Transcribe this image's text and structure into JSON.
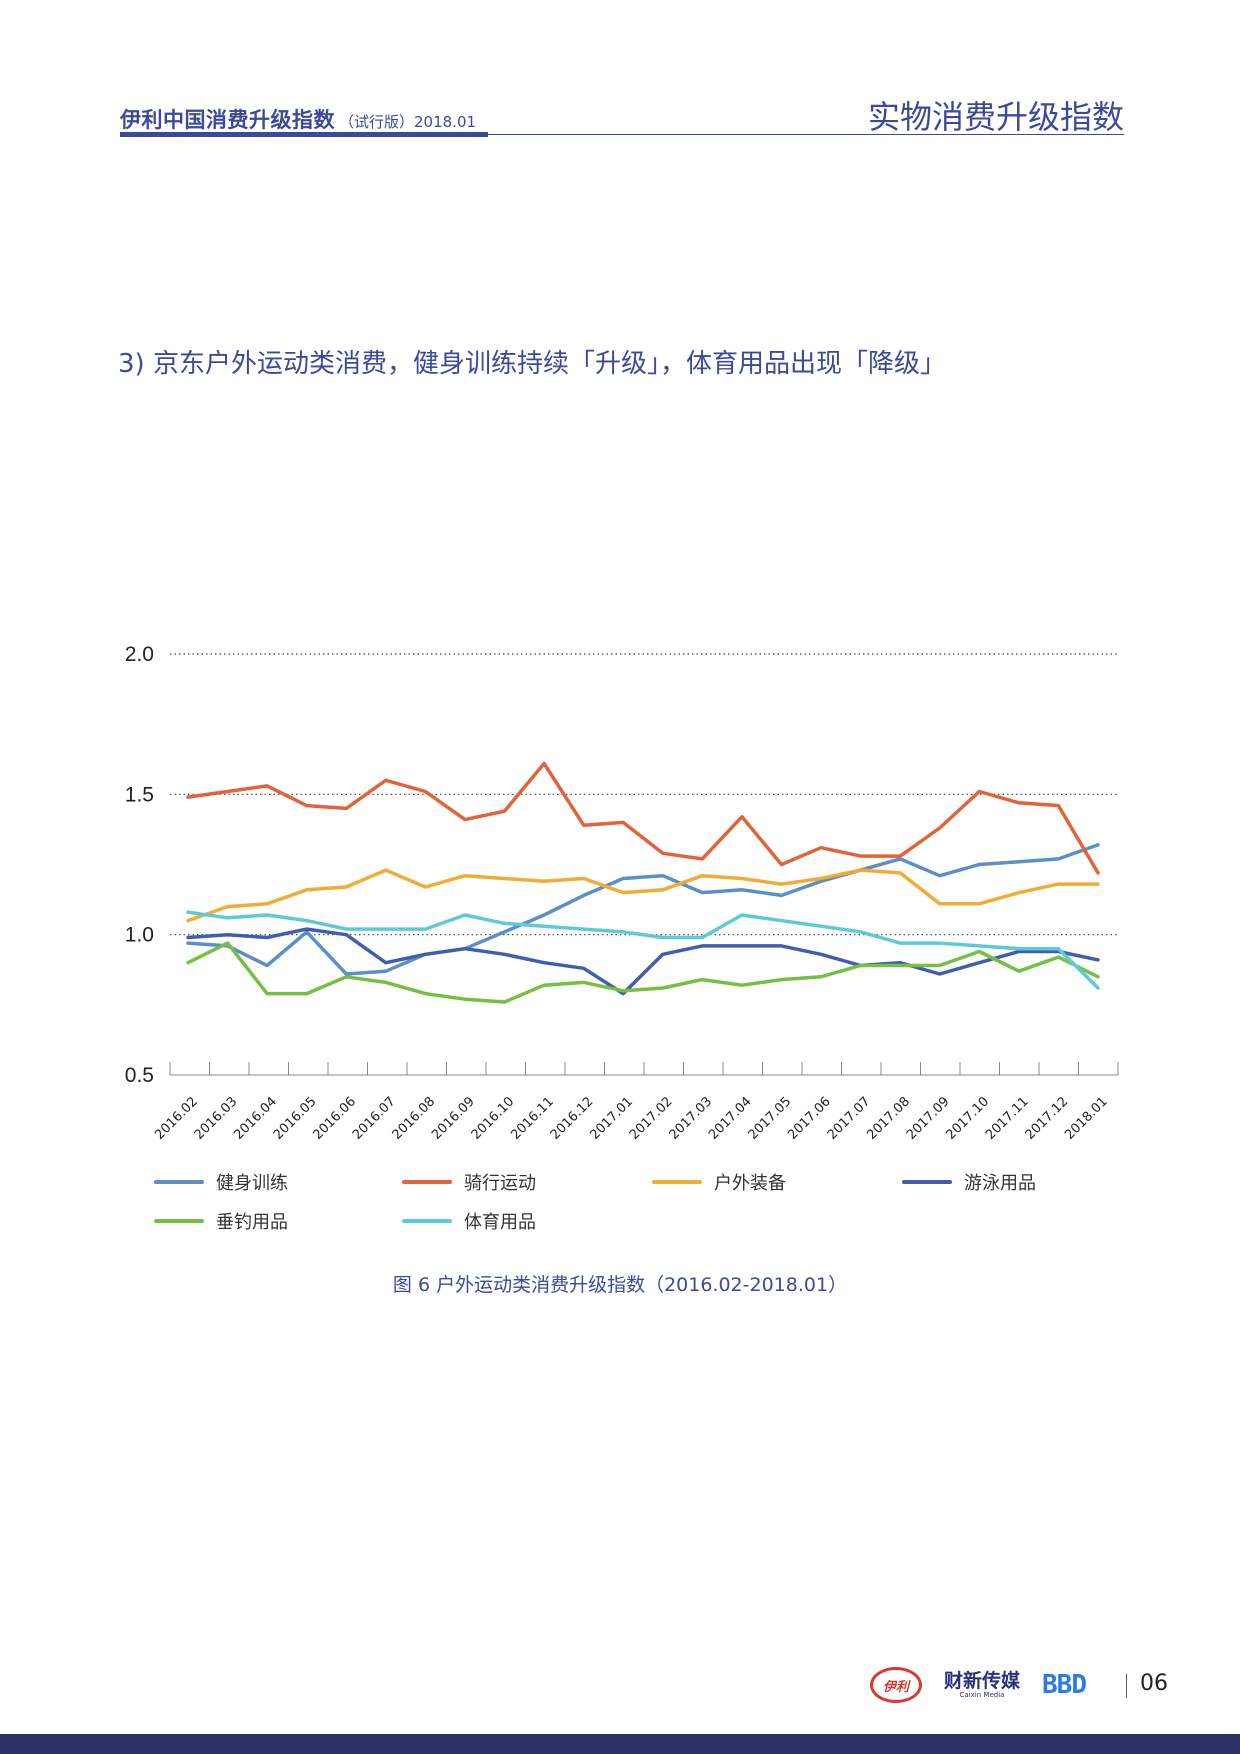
{
  "header": {
    "brand": "伊利中国消费升级指数",
    "edition": "（试行版）2018.01",
    "section": "实物消费升级指数"
  },
  "title": "3) 京东户外运动类消费，健身训练持续「升级」，体育用品出现「降级」",
  "caption": "图 6  户外运动类消费升级指数（2016.02-2018.01）",
  "footer": {
    "logo_yili": "伊利",
    "logo_cx": "财新传媒",
    "logo_cx_sub": "Caixin Media",
    "logo_bbd": "BBD",
    "page_number": "06"
  },
  "colors": {
    "accent": "#3d4a9a",
    "footer_bar": "#2c3268"
  },
  "chart_data": {
    "type": "line",
    "categories": [
      "2016.02",
      "2016.03",
      "2016.04",
      "2016.05",
      "2016.06",
      "2016.07",
      "2016.08",
      "2016.09",
      "2016.10",
      "2016.11",
      "2016.12",
      "2017.01",
      "2017.02",
      "2017.03",
      "2017.04",
      "2017.05",
      "2017.06",
      "2017.07",
      "2017.08",
      "2017.09",
      "2017.10",
      "2017.11",
      "2017.12",
      "2018.01"
    ],
    "ylim": [
      0.5,
      2.0
    ],
    "yticks": [
      "2.0",
      "1.5",
      "1.0",
      "0.5"
    ],
    "ytick_values": [
      2.0,
      1.5,
      1.0,
      0.5
    ],
    "grid": "dotted horizontal",
    "legend_position": "bottom",
    "series": [
      {
        "name": "健身训练",
        "color": "#5b8fc7",
        "values": [
          0.97,
          0.96,
          0.89,
          1.01,
          0.86,
          0.87,
          0.93,
          0.95,
          1.01,
          1.07,
          1.14,
          1.2,
          1.21,
          1.15,
          1.16,
          1.14,
          1.19,
          1.23,
          1.27,
          1.21,
          1.25,
          1.26,
          1.27,
          1.32
        ]
      },
      {
        "name": "骑行运动",
        "color": "#e0633a",
        "values": [
          1.49,
          1.51,
          1.53,
          1.46,
          1.45,
          1.55,
          1.51,
          1.41,
          1.44,
          1.61,
          1.39,
          1.4,
          1.29,
          1.27,
          1.42,
          1.25,
          1.31,
          1.28,
          1.28,
          1.38,
          1.51,
          1.47,
          1.46,
          1.22
        ]
      },
      {
        "name": "户外装备",
        "color": "#f0ac35",
        "values": [
          1.05,
          1.1,
          1.11,
          1.16,
          1.17,
          1.23,
          1.17,
          1.21,
          1.2,
          1.19,
          1.2,
          1.15,
          1.16,
          1.21,
          1.2,
          1.18,
          1.2,
          1.23,
          1.22,
          1.11,
          1.11,
          1.15,
          1.18,
          1.18
        ]
      },
      {
        "name": "游泳用品",
        "color": "#3e5db3",
        "values": [
          0.99,
          1.0,
          0.99,
          1.02,
          1.0,
          0.9,
          0.93,
          0.95,
          0.93,
          0.9,
          0.88,
          0.79,
          0.93,
          0.96,
          0.96,
          0.96,
          0.93,
          0.89,
          0.9,
          0.86,
          0.9,
          0.94,
          0.94,
          0.91
        ]
      },
      {
        "name": "垂钓用品",
        "color": "#73c043",
        "values": [
          0.9,
          0.97,
          0.79,
          0.79,
          0.85,
          0.83,
          0.79,
          0.77,
          0.76,
          0.82,
          0.83,
          0.8,
          0.81,
          0.84,
          0.82,
          0.84,
          0.85,
          0.89,
          0.89,
          0.89,
          0.94,
          0.87,
          0.92,
          0.85
        ]
      },
      {
        "name": "体育用品",
        "color": "#5ecad5",
        "values": [
          1.08,
          1.06,
          1.07,
          1.05,
          1.02,
          1.02,
          1.02,
          1.07,
          1.04,
          1.03,
          1.02,
          1.01,
          0.99,
          0.99,
          1.07,
          1.05,
          1.03,
          1.01,
          0.97,
          0.97,
          0.96,
          0.95,
          0.95,
          0.81
        ]
      }
    ]
  }
}
